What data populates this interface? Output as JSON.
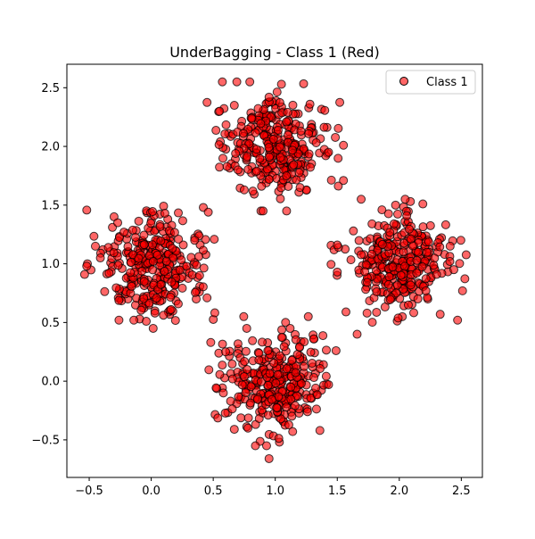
{
  "chart_data": {
    "type": "scatter",
    "title": "UnderBagging - Class 1 (Red)",
    "xlabel": "",
    "ylabel": "",
    "xlim": [
      -0.68,
      2.67
    ],
    "ylim": [
      -0.82,
      2.7
    ],
    "xticks": [
      -0.5,
      0.0,
      0.5,
      1.0,
      1.5,
      2.0,
      2.5
    ],
    "xtick_labels": [
      "−0.5",
      "0.0",
      "0.5",
      "1.0",
      "1.5",
      "2.0",
      "2.5"
    ],
    "yticks": [
      -0.5,
      0.0,
      0.5,
      1.0,
      1.5,
      2.0,
      2.5
    ],
    "ytick_labels": [
      "−0.5",
      "0.0",
      "0.5",
      "1.0",
      "1.5",
      "2.0",
      "2.5"
    ],
    "grid": false,
    "legend_position": "top-right",
    "series": [
      {
        "name": "Class 1",
        "color": "#ff0000",
        "edge_color": "#000000",
        "opacity": 0.6,
        "clusters": [
          {
            "center_x": 1.0,
            "center_y": 2.0,
            "spread": 0.2,
            "count": 300
          },
          {
            "center_x": 0.0,
            "center_y": 1.0,
            "spread": 0.2,
            "count": 300
          },
          {
            "center_x": 2.0,
            "center_y": 1.0,
            "spread": 0.2,
            "count": 300
          },
          {
            "center_x": 1.0,
            "center_y": 0.0,
            "spread": 0.2,
            "count": 300
          }
        ],
        "sample_points": [
          [
            1.05,
            2.53
          ],
          [
            0.95,
            2.42
          ],
          [
            1.28,
            2.36
          ],
          [
            0.67,
            2.35
          ],
          [
            1.55,
            2.01
          ],
          [
            1.43,
            1.95
          ],
          [
            1.55,
            1.71
          ],
          [
            0.7,
            1.8
          ],
          [
            0.68,
            1.94
          ],
          [
            0.81,
            2.24
          ],
          [
            1.1,
            2.29
          ],
          [
            0.85,
            1.79
          ],
          [
            1.2,
            1.65
          ],
          [
            0.75,
            1.63
          ],
          [
            -0.52,
            0.98
          ],
          [
            -0.45,
            1.15
          ],
          [
            -0.41,
            1.05
          ],
          [
            -0.27,
            1.35
          ],
          [
            -0.26,
            0.52
          ],
          [
            -0.14,
            0.52
          ],
          [
            -0.04,
            0.51
          ],
          [
            0.16,
            0.61
          ],
          [
            0.42,
            1.48
          ],
          [
            0.46,
            1.44
          ],
          [
            0.45,
            0.71
          ],
          [
            0.35,
            1.2
          ],
          [
            0.39,
            0.9
          ],
          [
            -0.22,
            1.27
          ],
          [
            0.11,
            1.43
          ],
          [
            0.03,
            0.58
          ],
          [
            1.5,
            0.93
          ],
          [
            1.51,
            1.14
          ],
          [
            1.5,
            1.16
          ],
          [
            1.57,
            0.59
          ],
          [
            1.74,
            0.58
          ],
          [
            2.51,
            0.77
          ],
          [
            2.41,
            1.15
          ],
          [
            2.47,
            0.52
          ],
          [
            2.33,
            0.57
          ],
          [
            2.19,
            1.51
          ],
          [
            2.06,
            1.41
          ],
          [
            1.97,
            1.5
          ],
          [
            1.63,
            1.28
          ],
          [
            1.78,
            1.34
          ],
          [
            1.86,
            1.46
          ],
          [
            2.44,
            0.95
          ],
          [
            1.66,
            0.4
          ],
          [
            0.95,
            -0.66
          ],
          [
            0.84,
            -0.55
          ],
          [
            0.94,
            0.26
          ],
          [
            1.49,
            0.26
          ],
          [
            1.43,
            -0.03
          ],
          [
            1.36,
            -0.42
          ],
          [
            0.48,
            0.33
          ],
          [
            0.64,
            -0.17
          ],
          [
            0.6,
            0.25
          ],
          [
            0.77,
            0.45
          ],
          [
            1.12,
            0.45
          ],
          [
            1.31,
            0.36
          ],
          [
            0.78,
            -0.4
          ],
          [
            1.26,
            -0.26
          ]
        ]
      }
    ]
  }
}
